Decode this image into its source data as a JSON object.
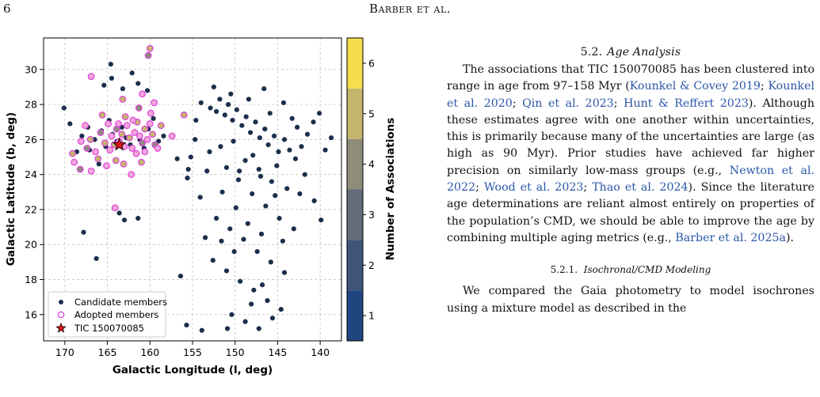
{
  "header": {
    "page_number": "6",
    "running_head": "Barber et al."
  },
  "chart_data": {
    "type": "scatter",
    "xlabel": "Galactic Longitude (l, deg)",
    "ylabel": "Galactic Latitude (b, deg)",
    "xlim": [
      172.5,
      137.5
    ],
    "ylim": [
      14.5,
      31.8
    ],
    "x_ticks": [
      170,
      165,
      160,
      155,
      150,
      145,
      140
    ],
    "y_ticks": [
      16,
      18,
      20,
      22,
      24,
      26,
      28,
      30
    ],
    "x_inverted": true,
    "grid": true,
    "legend": {
      "placement": "lower-left",
      "entries": [
        "Candidate members",
        "Adopted members",
        "TIC 150070085"
      ]
    },
    "colorbar": {
      "label": "Number of Associations",
      "ticks": [
        1,
        2,
        3,
        4,
        5,
        6
      ],
      "range": [
        0.5,
        6.5
      ],
      "colors": [
        "#21467f",
        "#3f5478",
        "#656b7a",
        "#8f8c7a",
        "#c4b56c",
        "#f5de4b"
      ]
    },
    "series": [
      {
        "name": "Candidate members",
        "points": [
          [
            170.1,
            27.8
          ],
          [
            169.4,
            26.9
          ],
          [
            168.6,
            25.3
          ],
          [
            168.0,
            26.2
          ],
          [
            167.3,
            26.7
          ],
          [
            167.8,
            20.7
          ],
          [
            167.1,
            25.4
          ],
          [
            166.5,
            26.0
          ],
          [
            166.0,
            24.6
          ],
          [
            165.7,
            26.5
          ],
          [
            165.2,
            25.6
          ],
          [
            164.8,
            27.1
          ],
          [
            164.4,
            26.3
          ],
          [
            163.9,
            25.9
          ],
          [
            163.3,
            26.7
          ],
          [
            162.8,
            26.1
          ],
          [
            162.3,
            25.7
          ],
          [
            161.8,
            26.4
          ],
          [
            161.2,
            26.0
          ],
          [
            160.7,
            25.5
          ],
          [
            160.2,
            26.6
          ],
          [
            159.6,
            26.3
          ],
          [
            159.0,
            25.9
          ],
          [
            158.4,
            26.2
          ],
          [
            164.5,
            29.5
          ],
          [
            164.6,
            30.3
          ],
          [
            165.4,
            29.1
          ],
          [
            163.2,
            28.9
          ],
          [
            162.1,
            29.8
          ],
          [
            161.4,
            29.2
          ],
          [
            160.3,
            28.8
          ],
          [
            159.6,
            27.2
          ],
          [
            163.6,
            21.8
          ],
          [
            163.0,
            21.4
          ],
          [
            161.4,
            21.5
          ],
          [
            166.3,
            19.2
          ],
          [
            155.6,
            23.8
          ],
          [
            155.2,
            25.0
          ],
          [
            154.6,
            27.1
          ],
          [
            154.1,
            22.7
          ],
          [
            153.5,
            20.4
          ],
          [
            156.8,
            24.9
          ],
          [
            152.9,
            27.8
          ],
          [
            152.2,
            27.6
          ],
          [
            151.8,
            28.3
          ],
          [
            151.2,
            27.4
          ],
          [
            150.8,
            28.0
          ],
          [
            150.3,
            27.1
          ],
          [
            149.8,
            27.7
          ],
          [
            149.2,
            26.8
          ],
          [
            148.7,
            27.3
          ],
          [
            148.2,
            26.4
          ],
          [
            147.6,
            27.0
          ],
          [
            147.1,
            26.1
          ],
          [
            146.5,
            26.6
          ],
          [
            146.1,
            25.7
          ],
          [
            145.4,
            26.2
          ],
          [
            144.9,
            25.3
          ],
          [
            144.2,
            26.0
          ],
          [
            143.6,
            25.4
          ],
          [
            142.9,
            24.9
          ],
          [
            142.2,
            25.6
          ],
          [
            141.5,
            26.3
          ],
          [
            140.8,
            27.0
          ],
          [
            140.1,
            27.5
          ],
          [
            139.4,
            25.4
          ],
          [
            138.7,
            26.1
          ],
          [
            152.5,
            29.0
          ],
          [
            150.5,
            28.6
          ],
          [
            148.4,
            28.3
          ],
          [
            146.6,
            28.9
          ],
          [
            144.3,
            28.1
          ],
          [
            150.2,
            25.9
          ],
          [
            148.8,
            24.8
          ],
          [
            147.2,
            24.3
          ],
          [
            145.7,
            23.6
          ],
          [
            143.9,
            23.2
          ],
          [
            142.4,
            22.9
          ],
          [
            140.7,
            22.5
          ],
          [
            151.0,
            24.4
          ],
          [
            149.6,
            23.7
          ],
          [
            148.0,
            22.9
          ],
          [
            146.4,
            22.2
          ],
          [
            144.8,
            21.5
          ],
          [
            143.1,
            20.9
          ],
          [
            139.9,
            21.4
          ],
          [
            152.2,
            21.5
          ],
          [
            150.6,
            20.9
          ],
          [
            149.0,
            20.3
          ],
          [
            147.4,
            19.6
          ],
          [
            145.8,
            19.0
          ],
          [
            144.2,
            18.4
          ],
          [
            152.6,
            19.1
          ],
          [
            151.0,
            18.5
          ],
          [
            149.4,
            17.9
          ],
          [
            147.8,
            17.4
          ],
          [
            146.2,
            16.8
          ],
          [
            144.6,
            16.3
          ],
          [
            150.4,
            16.0
          ],
          [
            148.8,
            15.6
          ],
          [
            147.2,
            15.2
          ],
          [
            145.6,
            15.8
          ],
          [
            153.9,
            15.1
          ],
          [
            155.7,
            15.4
          ],
          [
            150.9,
            15.2
          ],
          [
            148.1,
            16.6
          ],
          [
            146.8,
            17.7
          ],
          [
            149.9,
            22.1
          ],
          [
            153.3,
            24.2
          ],
          [
            154.7,
            26.0
          ],
          [
            151.7,
            25.6
          ],
          [
            145.1,
            24.5
          ],
          [
            143.3,
            27.2
          ],
          [
            141.8,
            24.0
          ],
          [
            147.9,
            25.1
          ],
          [
            153.0,
            25.3
          ],
          [
            146.9,
            20.6
          ],
          [
            145.3,
            22.8
          ],
          [
            150.1,
            19.6
          ],
          [
            148.5,
            21.2
          ],
          [
            144.4,
            20.2
          ],
          [
            151.5,
            23.0
          ],
          [
            147.0,
            23.9
          ],
          [
            142.7,
            26.7
          ],
          [
            154.0,
            28.1
          ],
          [
            149.5,
            24.2
          ],
          [
            145.9,
            27.5
          ],
          [
            151.6,
            20.2
          ],
          [
            156.4,
            18.2
          ],
          [
            155.5,
            24.3
          ]
        ]
      },
      {
        "name": "Adopted members",
        "points": [
          [
            169.1,
            25.2
          ],
          [
            168.1,
            25.9
          ],
          [
            167.6,
            26.8
          ],
          [
            167.0,
            26.0
          ],
          [
            166.4,
            25.3
          ],
          [
            165.8,
            26.4
          ],
          [
            165.3,
            25.8
          ],
          [
            164.9,
            26.9
          ],
          [
            164.5,
            26.2
          ],
          [
            164.2,
            25.7
          ],
          [
            163.9,
            26.6
          ],
          [
            163.6,
            25.9
          ],
          [
            163.3,
            26.3
          ],
          [
            163.0,
            25.6
          ],
          [
            162.7,
            26.8
          ],
          [
            162.4,
            26.1
          ],
          [
            162.1,
            25.5
          ],
          [
            161.8,
            26.4
          ],
          [
            161.5,
            27.0
          ],
          [
            161.2,
            26.2
          ],
          [
            160.9,
            25.8
          ],
          [
            160.6,
            26.6
          ],
          [
            160.3,
            26.0
          ],
          [
            160.0,
            26.9
          ],
          [
            159.7,
            26.3
          ],
          [
            159.4,
            25.7
          ],
          [
            163.7,
            26.9
          ],
          [
            162.9,
            27.3
          ],
          [
            161.6,
            25.2
          ],
          [
            164.7,
            25.4
          ],
          [
            166.1,
            24.9
          ],
          [
            162.2,
            24.0
          ],
          [
            160.6,
            25.3
          ],
          [
            165.6,
            27.4
          ],
          [
            160.9,
            28.6
          ],
          [
            160.2,
            30.8
          ],
          [
            160.0,
            31.2
          ],
          [
            166.9,
            29.6
          ],
          [
            159.5,
            28.1
          ],
          [
            163.2,
            28.3
          ],
          [
            161.3,
            27.8
          ],
          [
            168.9,
            24.7
          ],
          [
            164.0,
            24.8
          ],
          [
            166.9,
            24.2
          ],
          [
            157.4,
            26.2
          ],
          [
            156.0,
            27.4
          ],
          [
            164.1,
            22.1
          ],
          [
            159.1,
            25.5
          ],
          [
            158.7,
            26.8
          ],
          [
            165.1,
            24.5
          ],
          [
            167.4,
            25.5
          ],
          [
            163.1,
            24.6
          ],
          [
            162.0,
            27.1
          ],
          [
            159.9,
            27.5
          ],
          [
            161.0,
            24.7
          ],
          [
            168.2,
            24.3
          ]
        ]
      }
    ],
    "target": {
      "name": "TIC 150070085",
      "x": 163.6,
      "y": 25.7
    }
  },
  "text": {
    "section": {
      "number": "5.2.",
      "title": "Age Analysis"
    },
    "p1": [
      {
        "t": "The associations that TIC 150070085 has been clustered into range in age from 97–158 Myr ("
      },
      {
        "t": "Kounkel & Covey 2019",
        "c": 1
      },
      {
        "t": "; "
      },
      {
        "t": "Kounkel et al. 2020",
        "c": 1
      },
      {
        "t": "; "
      },
      {
        "t": "Qin et al. 2023",
        "c": 1
      },
      {
        "t": "; "
      },
      {
        "t": "Hunt & Reffert 2023",
        "c": 1
      },
      {
        "t": "). Although these estimates agree with one another within uncertainties, this is primarily because many of the uncertainties are large (as high as 90 Myr). Prior studies have achieved far higher precision on similarly low-mass groups (e.g., "
      },
      {
        "t": "Newton et al. 2022",
        "c": 1
      },
      {
        "t": "; "
      },
      {
        "t": "Wood et al. 2023",
        "c": 1
      },
      {
        "t": "; "
      },
      {
        "t": "Thao et al. 2024",
        "c": 1
      },
      {
        "t": "). Since the literature age determinations are reliant almost entirely on properties of the population’s CMD, we should be able to improve the age by combining multiple aging metrics (e.g., "
      },
      {
        "t": "Barber et al. 2025a",
        "c": 1
      },
      {
        "t": ")."
      }
    ],
    "subsection": {
      "number": "5.2.1.",
      "title": "Isochronal/CMD Modeling"
    },
    "p2": [
      {
        "t": "We compared the Gaia photometry to model isochrones using a mixture model as described in the"
      }
    ]
  }
}
